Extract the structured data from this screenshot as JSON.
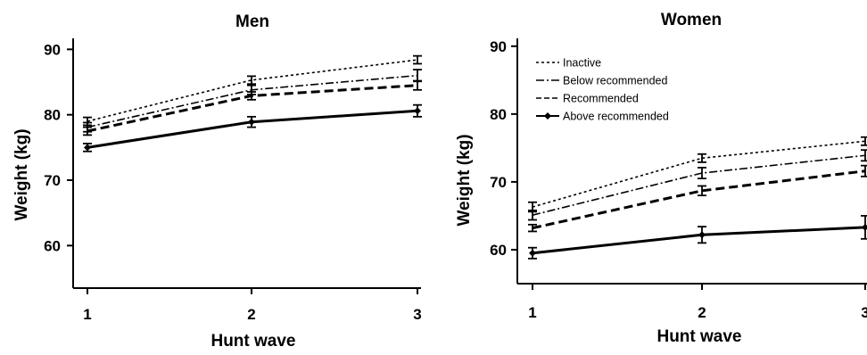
{
  "chart_data": [
    {
      "type": "line",
      "title": "Men",
      "xlabel": "Hunt wave",
      "ylabel": "Weight (kg)",
      "x": [
        1,
        2,
        3
      ],
      "x_tick_labels": [
        "1",
        "2",
        "3"
      ],
      "y_tick_labels": [
        "60",
        "70",
        "80",
        "90"
      ],
      "yticks": [
        60,
        70,
        80,
        90
      ],
      "ylim": [
        53.5,
        91
      ],
      "grid": false,
      "legend": null,
      "series": [
        {
          "key": "inactive",
          "style": "dotted",
          "values": [
            79.0,
            85.3,
            88.4
          ],
          "error": [
            0.6,
            0.6,
            0.6
          ]
        },
        {
          "key": "below",
          "style": "dashdot",
          "values": [
            78.1,
            83.8,
            86.0
          ],
          "error": [
            0.7,
            0.7,
            0.9
          ]
        },
        {
          "key": "recommended",
          "style": "dashed",
          "values": [
            77.5,
            82.9,
            84.5
          ],
          "error": [
            0.6,
            0.6,
            0.7
          ]
        },
        {
          "key": "above",
          "style": "solid",
          "values": [
            75.0,
            78.9,
            80.6
          ],
          "error": [
            0.6,
            0.8,
            0.9
          ]
        }
      ]
    },
    {
      "type": "line",
      "title": "Women",
      "xlabel": "Hunt wave",
      "ylabel": "Weight (kg)",
      "x": [
        1,
        2,
        3
      ],
      "x_tick_labels": [
        "1",
        "2",
        "3"
      ],
      "y_tick_labels": [
        "60",
        "70",
        "80",
        "90"
      ],
      "yticks": [
        60,
        70,
        80,
        90
      ],
      "ylim": [
        55,
        90.5
      ],
      "grid": false,
      "legend": "top-left",
      "series": [
        {
          "key": "inactive",
          "name": "Inactive",
          "style": "dotted",
          "values": [
            66.3,
            73.5,
            76.0
          ],
          "error": [
            0.7,
            0.6,
            0.6
          ]
        },
        {
          "key": "below",
          "name": "Below recommended",
          "style": "dashdot",
          "values": [
            65.1,
            71.3,
            73.9
          ],
          "error": [
            0.7,
            0.8,
            0.8
          ]
        },
        {
          "key": "recommended",
          "name": "Recommended",
          "style": "dashed",
          "values": [
            63.2,
            68.7,
            71.6
          ],
          "error": [
            0.5,
            0.7,
            0.8
          ]
        },
        {
          "key": "above",
          "name": "Above recommended",
          "style": "solid",
          "values": [
            59.5,
            62.2,
            63.3
          ],
          "error": [
            0.8,
            1.2,
            1.7
          ]
        }
      ]
    }
  ]
}
